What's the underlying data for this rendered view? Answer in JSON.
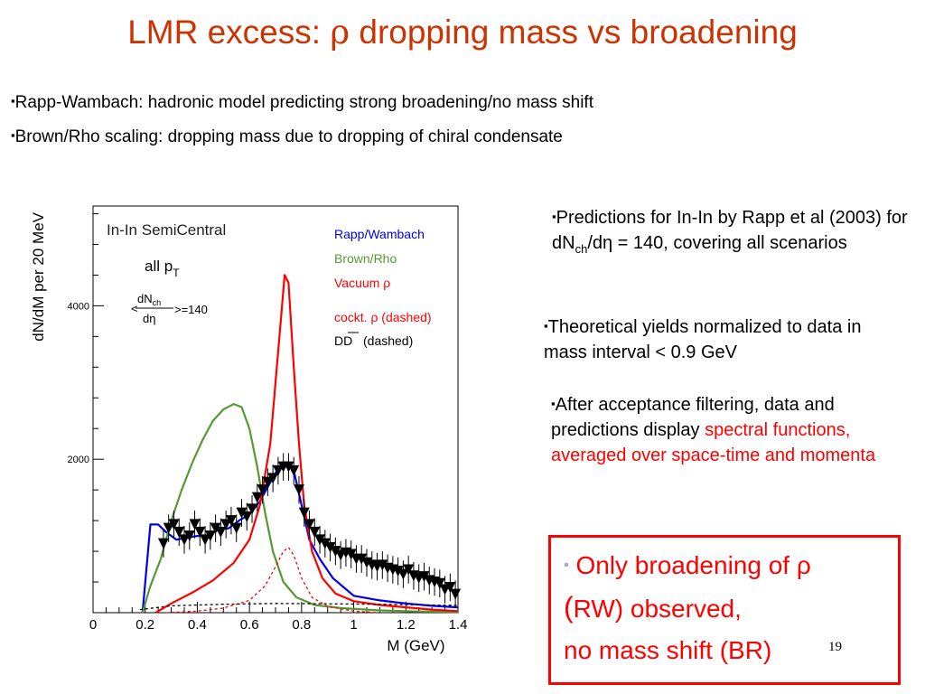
{
  "title": {
    "prefix": "LMR excess: ",
    "symbol": "ρ",
    "suffix": " dropping mass vs broadening"
  },
  "bullets": [
    "Rapp-Wambach: hadronic model predicting strong broadening/no mass shift",
    "Brown/Rho scaling: dropping mass due to dropping of chiral condensate"
  ],
  "side": {
    "note1_a": "Predictions for In-In by Rapp et al (2003) for dN",
    "note1_sub": "ch",
    "note1_b": "/dη = 140, covering all scenarios",
    "note2": "Theoretical yields normalized to data in  mass interval < 0.9 GeV",
    "note3_black": "After acceptance filtering, data and predictions display  ",
    "note3_red": "spectral functions, averaged over space-time and momenta"
  },
  "conclusion": {
    "line1": "Only broadening of ρ",
    "line2_paren": "(",
    "line2_rw": "RW) observed,",
    "line3": "no mass shift (BR)"
  },
  "slide_number": "19",
  "bullet_char": "▪",
  "colors": {
    "title": "#cc3300",
    "rapp_wambach": "#0000ee",
    "brown_rho": "#559933",
    "vacuum": "#ff0000",
    "data": "#000000"
  },
  "chart_data": {
    "type": "line",
    "panel_text": {
      "system": "In-In SemiCentral",
      "pt_prefix": "all p",
      "pt_sub": "T",
      "mult_num": "dN",
      "mult_num_sub": "ch",
      "mult_den": "dη",
      "mult_open": "<",
      "mult_value": ">=140"
    },
    "legend": [
      "Rapp/Wambach",
      "Brown/Rho",
      "Vacuum ρ",
      "cockt. ρ (dashed)",
      "DD",
      "(dashed)"
    ],
    "xlabel": "M (GeV)",
    "ylabel": "dN/dM per 20 MeV",
    "xlim": [
      0,
      1.4
    ],
    "ylim": [
      0,
      5300
    ],
    "xticks": [
      "0",
      "0.2",
      "0.4",
      "0.6",
      "0.8",
      "1",
      "1.2",
      "1.4"
    ],
    "yticks": [
      "2000",
      "4000"
    ],
    "grid": false,
    "legend_position": "top-right",
    "series": [
      {
        "name": "Rapp/Wambach",
        "style": "solid",
        "x": [
          0.19,
          0.22,
          0.25,
          0.28,
          0.32,
          0.36,
          0.4,
          0.44,
          0.48,
          0.52,
          0.56,
          0.6,
          0.64,
          0.68,
          0.71,
          0.74,
          0.77,
          0.8,
          0.83,
          0.87,
          0.92,
          1.0,
          1.1,
          1.2,
          1.3,
          1.4
        ],
        "y": [
          0,
          1150,
          1150,
          1050,
          950,
          980,
          1000,
          1000,
          1080,
          1100,
          1200,
          1280,
          1450,
          1700,
          1880,
          1960,
          1850,
          1400,
          950,
          700,
          450,
          220,
          160,
          120,
          90,
          70
        ]
      },
      {
        "name": "Brown/Rho",
        "style": "solid",
        "x": [
          0.19,
          0.22,
          0.26,
          0.3,
          0.34,
          0.38,
          0.42,
          0.46,
          0.5,
          0.54,
          0.57,
          0.6,
          0.63,
          0.66,
          0.69,
          0.73,
          0.78,
          0.85,
          0.95,
          1.1,
          1.25,
          1.4
        ],
        "y": [
          0,
          350,
          700,
          1200,
          1600,
          1950,
          2250,
          2500,
          2650,
          2720,
          2680,
          2400,
          1900,
          1300,
          800,
          400,
          200,
          100,
          60,
          30,
          15,
          10
        ]
      },
      {
        "name": "Vacuum ρ",
        "style": "solid",
        "x": [
          0.24,
          0.3,
          0.38,
          0.46,
          0.54,
          0.6,
          0.64,
          0.68,
          0.7,
          0.72,
          0.735,
          0.75,
          0.77,
          0.79,
          0.81,
          0.84,
          0.88,
          0.93,
          1.0,
          1.1,
          1.2,
          1.3,
          1.4
        ],
        "y": [
          0,
          120,
          260,
          420,
          650,
          950,
          1400,
          2200,
          3000,
          3800,
          4400,
          4300,
          3200,
          2200,
          1400,
          800,
          450,
          250,
          150,
          100,
          70,
          40,
          20
        ]
      },
      {
        "name": "cockt. ρ",
        "style": "dashed",
        "x": [
          0.28,
          0.4,
          0.5,
          0.6,
          0.66,
          0.7,
          0.73,
          0.75,
          0.77,
          0.8,
          0.84,
          0.9,
          1.0,
          1.1
        ],
        "y": [
          0,
          20,
          60,
          160,
          350,
          600,
          800,
          850,
          750,
          450,
          200,
          80,
          20,
          0
        ]
      },
      {
        "name": "DD",
        "style": "dashed",
        "x": [
          0.18,
          0.3,
          0.5,
          0.7,
          0.9,
          1.1,
          1.3,
          1.4
        ],
        "y": [
          40,
          90,
          110,
          120,
          115,
          110,
          100,
          95
        ]
      }
    ],
    "data_points": {
      "name": "data",
      "x": [
        0.27,
        0.29,
        0.31,
        0.33,
        0.35,
        0.37,
        0.39,
        0.41,
        0.43,
        0.45,
        0.47,
        0.49,
        0.51,
        0.53,
        0.55,
        0.57,
        0.59,
        0.61,
        0.63,
        0.65,
        0.67,
        0.69,
        0.71,
        0.73,
        0.75,
        0.77,
        0.79,
        0.81,
        0.83,
        0.85,
        0.87,
        0.89,
        0.91,
        0.93,
        0.95,
        0.97,
        0.99,
        1.01,
        1.03,
        1.05,
        1.07,
        1.09,
        1.11,
        1.13,
        1.15,
        1.17,
        1.19,
        1.21,
        1.23,
        1.25,
        1.27,
        1.29,
        1.31,
        1.33,
        1.35,
        1.37,
        1.39
      ],
      "y": [
        900,
        1100,
        1150,
        1050,
        950,
        1000,
        1150,
        1050,
        950,
        1000,
        1100,
        1050,
        1150,
        1200,
        1100,
        1300,
        1250,
        1350,
        1500,
        1600,
        1700,
        1750,
        1850,
        1900,
        1900,
        1850,
        1600,
        1300,
        1150,
        1050,
        950,
        900,
        850,
        800,
        750,
        780,
        760,
        700,
        700,
        650,
        620,
        600,
        620,
        580,
        560,
        540,
        500,
        560,
        480,
        450,
        470,
        420,
        400,
        380,
        300,
        330,
        240
      ],
      "yerr": 180
    }
  }
}
